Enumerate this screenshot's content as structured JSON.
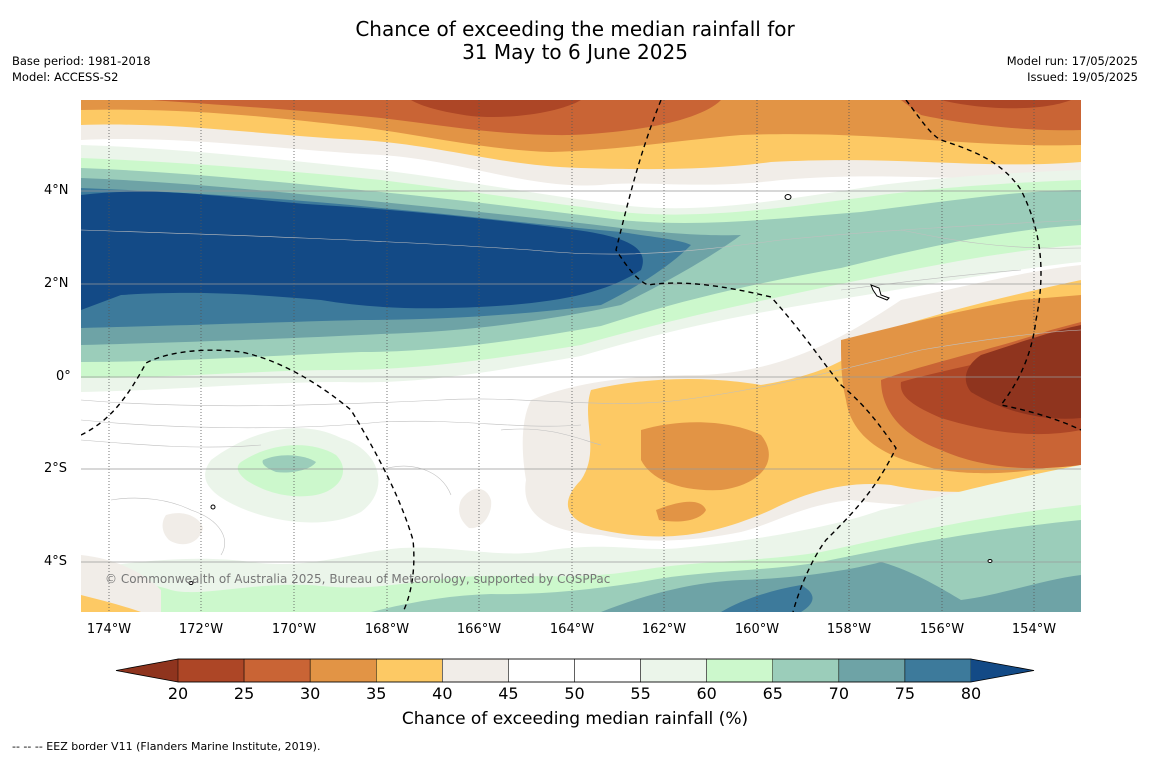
{
  "title_line1": "Chance of exceeding the median rainfall for",
  "title_line2": "31 May to 6 June 2025",
  "meta_left": {
    "base_period": "Base period: 1981-2018",
    "model": "Model: ACCESS-S2"
  },
  "meta_right": {
    "model_run": "Model run: 17/05/2025",
    "issued": "Issued: 19/05/2025"
  },
  "lat_labels": [
    "4°N",
    "2°N",
    "0°",
    "2°S",
    "4°S"
  ],
  "lon_labels": [
    "174°W",
    "172°W",
    "170°W",
    "168°W",
    "166°W",
    "164°W",
    "162°W",
    "160°W",
    "158°W",
    "156°W",
    "154°W"
  ],
  "copyright": "© Commonwealth of Australia 2025, Bureau of Meteorology, supported by COSPPac",
  "colorbar": {
    "ticks": [
      "20",
      "25",
      "30",
      "35",
      "40",
      "45",
      "50",
      "55",
      "60",
      "65",
      "70",
      "75",
      "80"
    ],
    "colors": [
      "#8f341e",
      "#ad4626",
      "#c96435",
      "#e29445",
      "#fdc964",
      "#f1ede8",
      "#ffffff",
      "#ffffff",
      "#ebf5ea",
      "#ccf8cc",
      "#9bcdba",
      "#6ea3a6",
      "#3d7a9b",
      "#134a86"
    ],
    "label": "Chance of exceeding median rainfall (%)"
  },
  "footnote": "--  --  -- EEZ border V11 (Flanders Marine Institute, 2019)."
}
